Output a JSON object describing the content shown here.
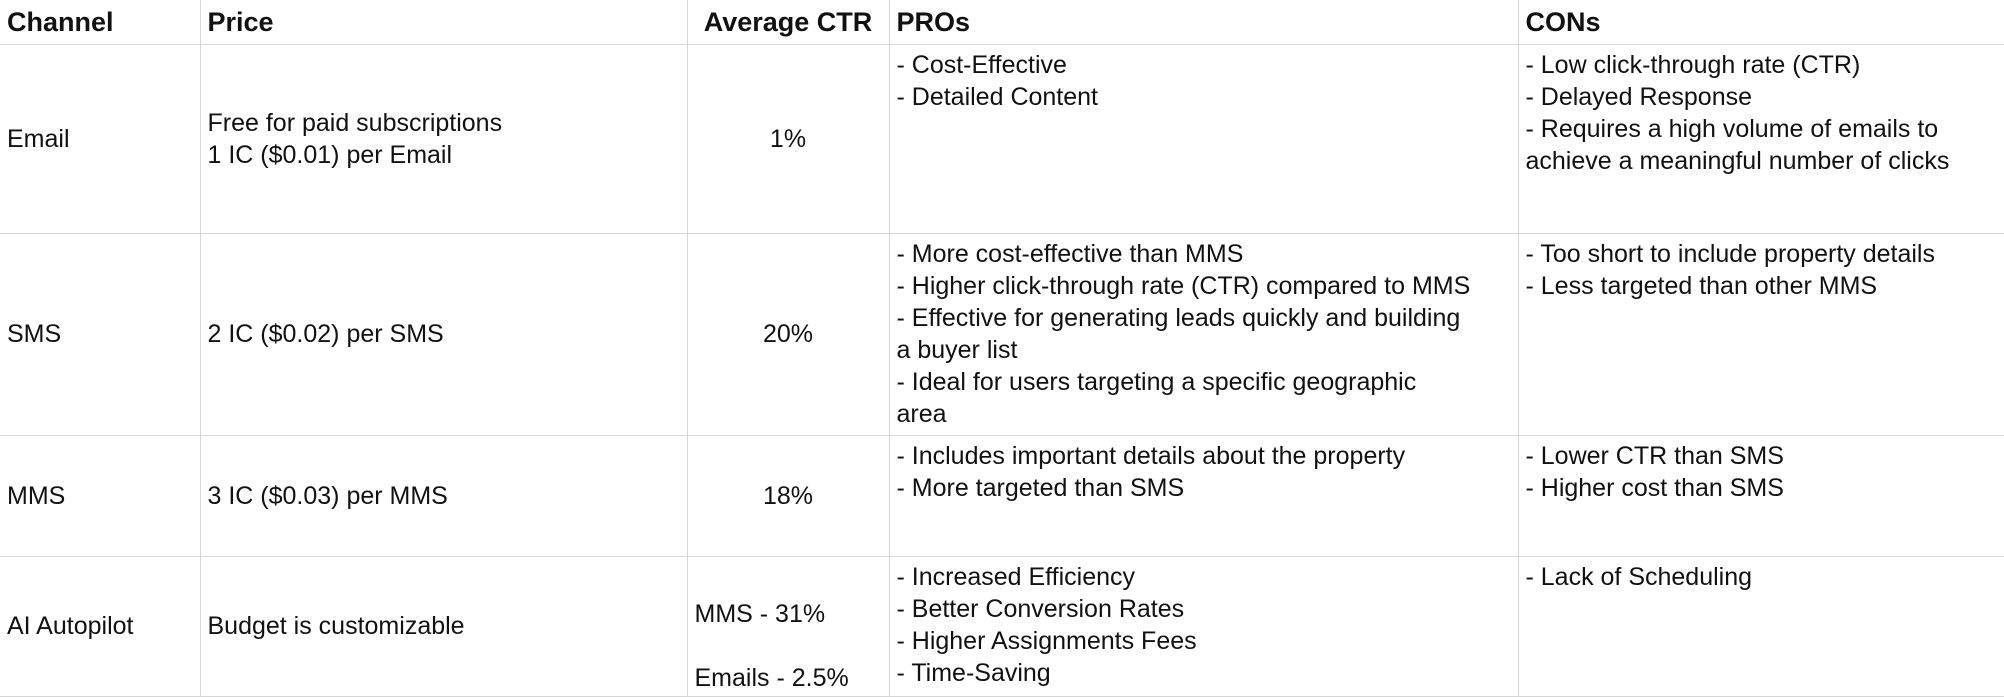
{
  "headers": [
    "Channel",
    "Price",
    "Average CTR",
    "PROs",
    "CONs"
  ],
  "rows": [
    {
      "channel": "Email",
      "price": [
        "Free for paid subscriptions",
        "1 IC ($0.01) per Email"
      ],
      "ctr": [
        "1%"
      ],
      "pros": [
        "- Cost-Effective",
        "- Detailed Content"
      ],
      "cons": [
        "- Low click-through rate (CTR)",
        "- Delayed Response",
        "- Requires a high volume of emails to",
        "achieve a meaningful number of clicks"
      ]
    },
    {
      "channel": "SMS",
      "price": [
        "2 IC ($0.02) per SMS"
      ],
      "ctr": [
        "20%"
      ],
      "pros": [
        "- More cost-effective than MMS",
        "- Higher click-through rate (CTR) compared to MMS",
        "- Effective for generating leads quickly and building",
        "a buyer list",
        "- Ideal for users targeting a specific geographic",
        "area"
      ],
      "cons": [
        "- Too short to include property details",
        "- Less targeted than other MMS"
      ]
    },
    {
      "channel": "MMS",
      "price": [
        "3 IC ($0.03) per MMS"
      ],
      "ctr": [
        "18%"
      ],
      "pros": [
        "- Includes important details about the property",
        "- More targeted than SMS"
      ],
      "cons": [
        "- Lower CTR than SMS",
        "- Higher cost than SMS"
      ]
    },
    {
      "channel": "AI Autopilot",
      "price": [
        "Budget is customizable"
      ],
      "ctr": [
        "MMS - 31%",
        "Emails - 2.5%"
      ],
      "pros": [
        "- Increased Efficiency",
        "- Better Conversion Rates",
        "- Higher Assignments Fees",
        "- Time-Saving"
      ],
      "cons": [
        "- Lack of Scheduling"
      ]
    }
  ]
}
